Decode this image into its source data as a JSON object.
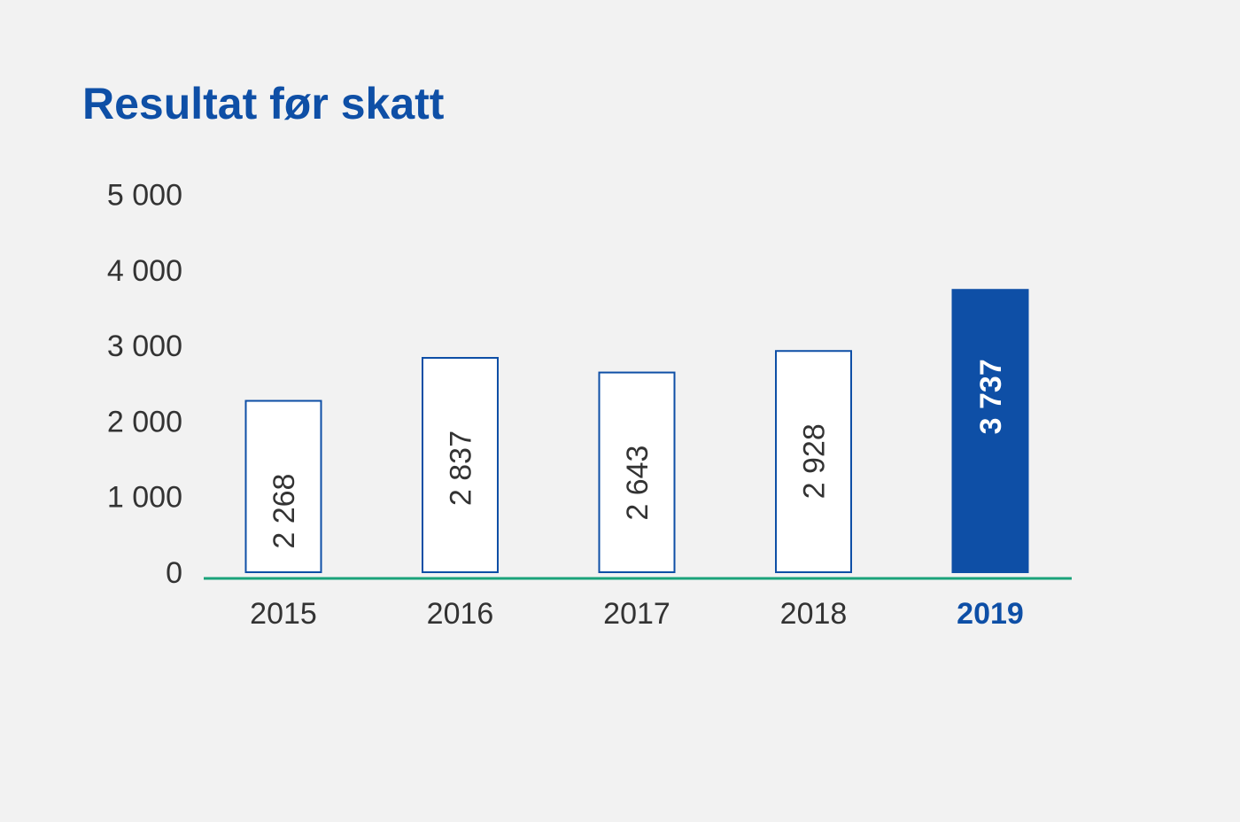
{
  "chart_data": {
    "type": "bar",
    "title": "Resultat før skatt",
    "categories": [
      "2015",
      "2016",
      "2017",
      "2018",
      "2019"
    ],
    "values": [
      2268,
      2837,
      2643,
      2928,
      3737
    ],
    "value_labels": [
      "2 268",
      "2 837",
      "2 643",
      "2 928",
      "3 737"
    ],
    "highlight_index": 4,
    "ylim": [
      0,
      5000
    ],
    "yticks": [
      0,
      1000,
      2000,
      3000,
      4000,
      5000
    ],
    "ytick_labels": [
      "0",
      "1 000",
      "2 000",
      "3 000",
      "4 000",
      "5 000"
    ],
    "xlabel": "",
    "ylabel": "",
    "grid": false,
    "legend": "none",
    "colors": {
      "accent": "#0e4fa6",
      "baseline": "#1aa37a",
      "bar_fill": "#ffffff",
      "text": "#333333",
      "background": "#f2f2f2"
    }
  }
}
